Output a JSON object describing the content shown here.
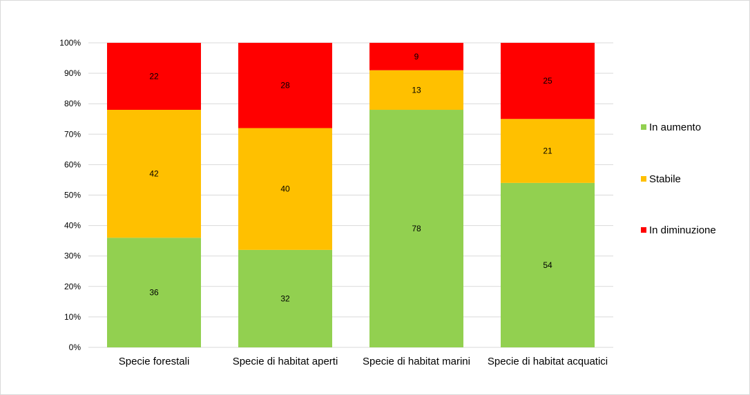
{
  "chart_data": {
    "type": "bar",
    "stacked": "percent",
    "title": "",
    "xlabel": "",
    "ylabel": "",
    "ylim": [
      0,
      100
    ],
    "yticks": [
      "0%",
      "10%",
      "20%",
      "30%",
      "40%",
      "50%",
      "60%",
      "70%",
      "80%",
      "90%",
      "100%"
    ],
    "grid": true,
    "legend_position": "right",
    "categories": [
      "Specie forestali",
      "Specie di habitat aperti",
      "Specie di habitat marini",
      "Specie di habitat acquatici"
    ],
    "series": [
      {
        "name": "In aumento",
        "color": "#92d050",
        "values": [
          36,
          32,
          78,
          54
        ]
      },
      {
        "name": "Stabile",
        "color": "#ffc000",
        "values": [
          42,
          40,
          13,
          21
        ]
      },
      {
        "name": "In diminuzione",
        "color": "#ff0000",
        "values": [
          22,
          28,
          9,
          25
        ]
      }
    ]
  }
}
